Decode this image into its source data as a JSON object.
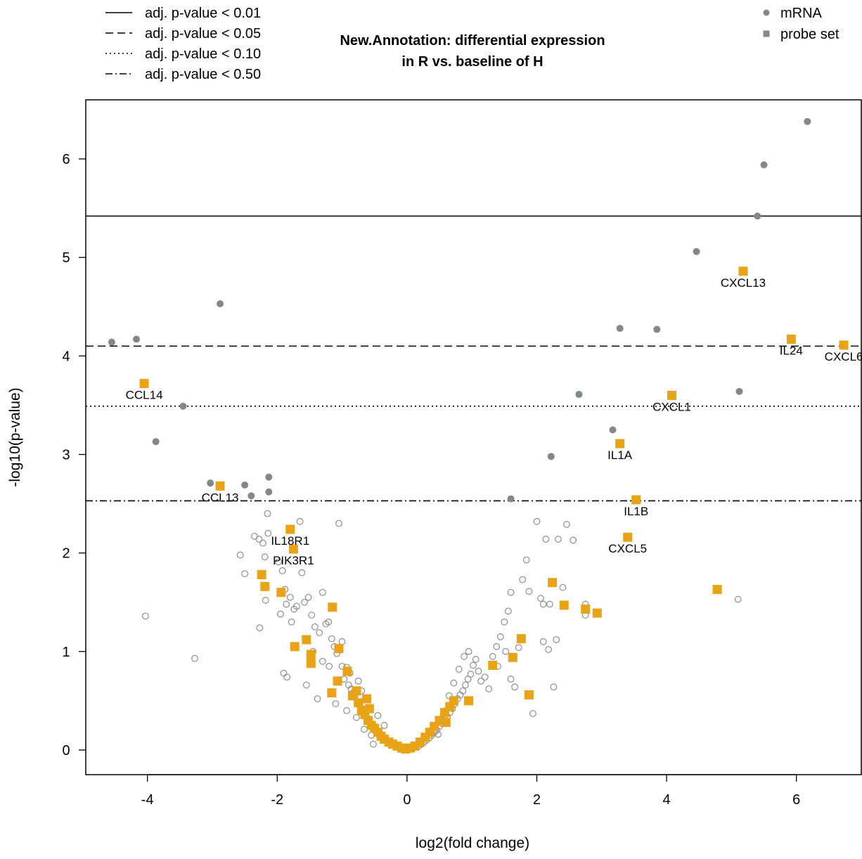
{
  "chart_data": {
    "type": "scatter",
    "title_lines": [
      "New.Annotation: differential expression",
      "in R vs. baseline of H"
    ],
    "xlabel": "log2(fold change)",
    "ylabel": "-log10(p-value)",
    "xlim": [
      -4.95,
      7.0
    ],
    "ylim": [
      -0.25,
      6.6
    ],
    "xticks": [
      -4,
      -2,
      0,
      2,
      4,
      6
    ],
    "yticks": [
      0,
      1,
      2,
      3,
      4,
      5,
      6
    ],
    "colors": {
      "mrna": "#7f8a86",
      "probe": "#e8a317",
      "open": "#8a8e8c"
    },
    "legend_lines": [
      {
        "label": "adj. p-value < 0.01",
        "dash": "solid"
      },
      {
        "label": "adj. p-value < 0.05",
        "dash": "dashed"
      },
      {
        "label": "adj. p-value < 0.10",
        "dash": "dotted"
      },
      {
        "label": "adj. p-value < 0.50",
        "dash": "dotdash"
      }
    ],
    "legend_points": [
      {
        "label": "mRNA",
        "shape": "circle"
      },
      {
        "label": "probe set",
        "shape": "square"
      }
    ],
    "thresholds": [
      {
        "y": 5.42,
        "dash": "solid"
      },
      {
        "y": 4.1,
        "dash": "dashed"
      },
      {
        "y": 3.49,
        "dash": "dotted"
      },
      {
        "y": 2.53,
        "dash": "dotdash"
      }
    ],
    "mrna_significant": [
      [
        6.17,
        6.38
      ],
      [
        5.5,
        5.94
      ],
      [
        5.4,
        5.42
      ],
      [
        4.46,
        5.06
      ],
      [
        3.28,
        4.28
      ],
      [
        3.85,
        4.27
      ],
      [
        5.12,
        3.64
      ],
      [
        2.65,
        3.61
      ],
      [
        3.17,
        3.25
      ],
      [
        2.22,
        2.98
      ],
      [
        1.6,
        2.55
      ],
      [
        -2.88,
        4.53
      ],
      [
        -4.17,
        4.17
      ],
      [
        -4.55,
        4.14
      ],
      [
        -3.45,
        3.49
      ],
      [
        -3.87,
        3.13
      ],
      [
        -3.03,
        2.71
      ],
      [
        -2.5,
        2.69
      ],
      [
        -2.13,
        2.77
      ],
      [
        -2.13,
        2.62
      ],
      [
        -2.4,
        2.58
      ]
    ],
    "mrna_other": [
      [
        -4.03,
        1.36
      ],
      [
        -3.27,
        0.93
      ],
      [
        -2.57,
        1.98
      ],
      [
        -2.5,
        1.79
      ],
      [
        -2.35,
        2.17
      ],
      [
        -2.28,
        2.14
      ],
      [
        -2.22,
        2.1
      ],
      [
        -2.15,
        2.4
      ],
      [
        -2.14,
        2.2
      ],
      [
        -2.19,
        1.96
      ],
      [
        -2.25,
        1.77
      ],
      [
        -2.18,
        1.52
      ],
      [
        -2.27,
        1.24
      ],
      [
        -1.98,
        1.91
      ],
      [
        -1.92,
        1.82
      ],
      [
        -1.88,
        1.63
      ],
      [
        -1.8,
        1.55
      ],
      [
        -1.74,
        1.43
      ],
      [
        -1.95,
        1.38
      ],
      [
        -1.86,
        1.48
      ],
      [
        -1.78,
        1.3
      ],
      [
        -1.7,
        1.46
      ],
      [
        -1.65,
        2.32
      ],
      [
        -1.62,
        1.8
      ],
      [
        -1.58,
        1.5
      ],
      [
        -1.52,
        1.55
      ],
      [
        -1.47,
        1.37
      ],
      [
        -1.42,
        1.25
      ],
      [
        -1.35,
        1.19
      ],
      [
        -1.3,
        1.6
      ],
      [
        -1.25,
        1.28
      ],
      [
        -1.21,
        1.3
      ],
      [
        -1.16,
        1.13
      ],
      [
        -1.12,
        1.05
      ],
      [
        -1.08,
        0.98
      ],
      [
        -1.05,
        2.3
      ],
      [
        -1.0,
        0.85
      ],
      [
        -0.97,
        0.72
      ],
      [
        -0.93,
        0.84
      ],
      [
        -0.9,
        0.66
      ],
      [
        -0.86,
        0.62
      ],
      [
        -0.83,
        0.58
      ],
      [
        -0.8,
        0.55
      ],
      [
        -0.76,
        0.49
      ],
      [
        -0.72,
        0.44
      ],
      [
        -0.69,
        0.42
      ],
      [
        -0.66,
        0.39
      ],
      [
        -0.62,
        0.33
      ],
      [
        -0.58,
        0.3
      ],
      [
        -0.54,
        0.26
      ],
      [
        -0.5,
        0.23
      ],
      [
        -0.46,
        0.19
      ],
      [
        -0.42,
        0.17
      ],
      [
        -0.38,
        0.14
      ],
      [
        -0.34,
        0.12
      ],
      [
        -0.3,
        0.09
      ],
      [
        -0.26,
        0.07
      ],
      [
        -0.22,
        0.05
      ],
      [
        -0.18,
        0.04
      ],
      [
        -0.14,
        0.03
      ],
      [
        -0.1,
        0.02
      ],
      [
        -0.06,
        0.01
      ],
      [
        -1.9,
        0.78
      ],
      [
        -1.85,
        0.74
      ],
      [
        -1.55,
        0.66
      ],
      [
        -1.38,
        0.52
      ],
      [
        -1.1,
        0.47
      ],
      [
        -0.93,
        0.4
      ],
      [
        -0.78,
        0.33
      ],
      [
        -0.66,
        0.21
      ],
      [
        -0.55,
        0.15
      ],
      [
        -0.52,
        0.06
      ],
      [
        -1.45,
        1.0
      ],
      [
        -1.3,
        0.9
      ],
      [
        -1.2,
        0.85
      ],
      [
        -1.0,
        1.1
      ],
      [
        -0.88,
        0.78
      ],
      [
        -0.75,
        0.7
      ],
      [
        -0.7,
        0.6
      ],
      [
        -0.6,
        0.52
      ],
      [
        -0.45,
        0.35
      ],
      [
        -0.35,
        0.25
      ],
      [
        0.06,
        0.01
      ],
      [
        0.1,
        0.02
      ],
      [
        0.14,
        0.03
      ],
      [
        0.18,
        0.04
      ],
      [
        0.22,
        0.06
      ],
      [
        0.26,
        0.08
      ],
      [
        0.3,
        0.1
      ],
      [
        0.34,
        0.12
      ],
      [
        0.38,
        0.15
      ],
      [
        0.42,
        0.18
      ],
      [
        0.46,
        0.2
      ],
      [
        0.5,
        0.24
      ],
      [
        0.54,
        0.27
      ],
      [
        0.58,
        0.31
      ],
      [
        0.62,
        0.34
      ],
      [
        0.66,
        0.38
      ],
      [
        0.7,
        0.42
      ],
      [
        0.74,
        0.47
      ],
      [
        0.78,
        0.52
      ],
      [
        0.82,
        0.56
      ],
      [
        0.86,
        0.6
      ],
      [
        0.9,
        0.66
      ],
      [
        0.94,
        0.72
      ],
      [
        0.98,
        0.77
      ],
      [
        1.02,
        0.86
      ],
      [
        1.06,
        0.92
      ],
      [
        1.1,
        0.8
      ],
      [
        1.14,
        0.7
      ],
      [
        1.2,
        0.74
      ],
      [
        1.26,
        0.62
      ],
      [
        1.32,
        0.95
      ],
      [
        1.38,
        1.05
      ],
      [
        1.44,
        1.15
      ],
      [
        1.5,
        1.3
      ],
      [
        1.56,
        1.41
      ],
      [
        1.6,
        0.72
      ],
      [
        1.66,
        0.64
      ],
      [
        1.72,
        1.04
      ],
      [
        1.78,
        1.73
      ],
      [
        1.84,
        1.93
      ],
      [
        1.88,
        1.61
      ],
      [
        1.94,
        0.37
      ],
      [
        2.0,
        2.32
      ],
      [
        2.06,
        1.54
      ],
      [
        2.1,
        1.48
      ],
      [
        2.14,
        2.14
      ],
      [
        2.2,
        1.48
      ],
      [
        2.26,
        0.64
      ],
      [
        2.33,
        2.14
      ],
      [
        2.4,
        1.65
      ],
      [
        2.46,
        2.29
      ],
      [
        2.56,
        2.13
      ],
      [
        2.75,
        1.37
      ],
      [
        2.75,
        1.48
      ],
      [
        0.95,
        1.0
      ],
      [
        0.88,
        0.95
      ],
      [
        0.8,
        0.82
      ],
      [
        0.72,
        0.68
      ],
      [
        0.65,
        0.55
      ],
      [
        0.6,
        0.4
      ],
      [
        0.55,
        0.3
      ],
      [
        0.48,
        0.16
      ],
      [
        1.4,
        0.85
      ],
      [
        1.52,
        1.0
      ],
      [
        1.6,
        1.6
      ],
      [
        2.1,
        1.1
      ],
      [
        2.18,
        1.02
      ],
      [
        2.3,
        1.12
      ],
      [
        5.1,
        1.53
      ]
    ],
    "probe_sets": [
      [
        -4.05,
        3.72
      ],
      [
        -2.88,
        2.68
      ],
      [
        -1.8,
        2.24
      ],
      [
        -1.75,
        2.04
      ],
      [
        -2.24,
        1.78
      ],
      [
        -2.19,
        1.66
      ],
      [
        -1.94,
        1.6
      ],
      [
        -1.15,
        1.45
      ],
      [
        -1.73,
        1.05
      ],
      [
        -1.55,
        1.12
      ],
      [
        -1.48,
        0.97
      ],
      [
        -1.48,
        0.88
      ],
      [
        -1.05,
        1.03
      ],
      [
        -1.07,
        0.7
      ],
      [
        -1.16,
        0.58
      ],
      [
        -0.92,
        0.8
      ],
      [
        -0.84,
        0.55
      ],
      [
        -0.75,
        0.48
      ],
      [
        -0.7,
        0.4
      ],
      [
        -0.65,
        0.36
      ],
      [
        -0.6,
        0.3
      ],
      [
        -0.55,
        0.25
      ],
      [
        -0.5,
        0.22
      ],
      [
        -0.45,
        0.18
      ],
      [
        -0.4,
        0.14
      ],
      [
        -0.35,
        0.11
      ],
      [
        -0.28,
        0.08
      ],
      [
        -0.22,
        0.06
      ],
      [
        -0.15,
        0.04
      ],
      [
        -0.08,
        0.02
      ],
      [
        -0.02,
        0.01
      ],
      [
        -0.62,
        0.52
      ],
      [
        -0.58,
        0.42
      ],
      [
        -0.78,
        0.6
      ],
      [
        0.05,
        0.02
      ],
      [
        0.12,
        0.04
      ],
      [
        0.2,
        0.08
      ],
      [
        0.28,
        0.13
      ],
      [
        0.35,
        0.18
      ],
      [
        0.42,
        0.24
      ],
      [
        0.5,
        0.3
      ],
      [
        0.58,
        0.38
      ],
      [
        0.66,
        0.44
      ],
      [
        0.72,
        0.5
      ],
      [
        0.95,
        0.5
      ],
      [
        0.6,
        0.28
      ],
      [
        1.32,
        0.86
      ],
      [
        1.63,
        0.94
      ],
      [
        1.76,
        1.13
      ],
      [
        1.88,
        0.56
      ],
      [
        2.24,
        1.7
      ],
      [
        2.42,
        1.47
      ],
      [
        2.75,
        1.43
      ],
      [
        2.93,
        1.39
      ],
      [
        4.78,
        1.63
      ],
      [
        5.18,
        4.86
      ],
      [
        5.92,
        4.17
      ],
      [
        6.73,
        4.11
      ],
      [
        4.08,
        3.6
      ],
      [
        3.28,
        3.11
      ],
      [
        3.53,
        2.54
      ],
      [
        3.4,
        2.16
      ]
    ],
    "gene_labels": [
      {
        "text": "CXCL13",
        "x": 5.18,
        "y": 4.86
      },
      {
        "text": "IL24",
        "x": 5.92,
        "y": 4.17
      },
      {
        "text": "CXCL6",
        "x": 6.73,
        "y": 4.11
      },
      {
        "text": "CXCL1",
        "x": 4.08,
        "y": 3.6
      },
      {
        "text": "IL1A",
        "x": 3.28,
        "y": 3.11
      },
      {
        "text": "IL1B",
        "x": 3.53,
        "y": 2.54
      },
      {
        "text": "CXCL5",
        "x": 3.4,
        "y": 2.16
      },
      {
        "text": "CCL14",
        "x": -4.05,
        "y": 3.72
      },
      {
        "text": "CCL13",
        "x": -2.88,
        "y": 2.68
      },
      {
        "text": "IL18R1",
        "x": -1.8,
        "y": 2.24
      },
      {
        "text": "PIK3R1",
        "x": -1.75,
        "y": 2.04
      }
    ]
  }
}
